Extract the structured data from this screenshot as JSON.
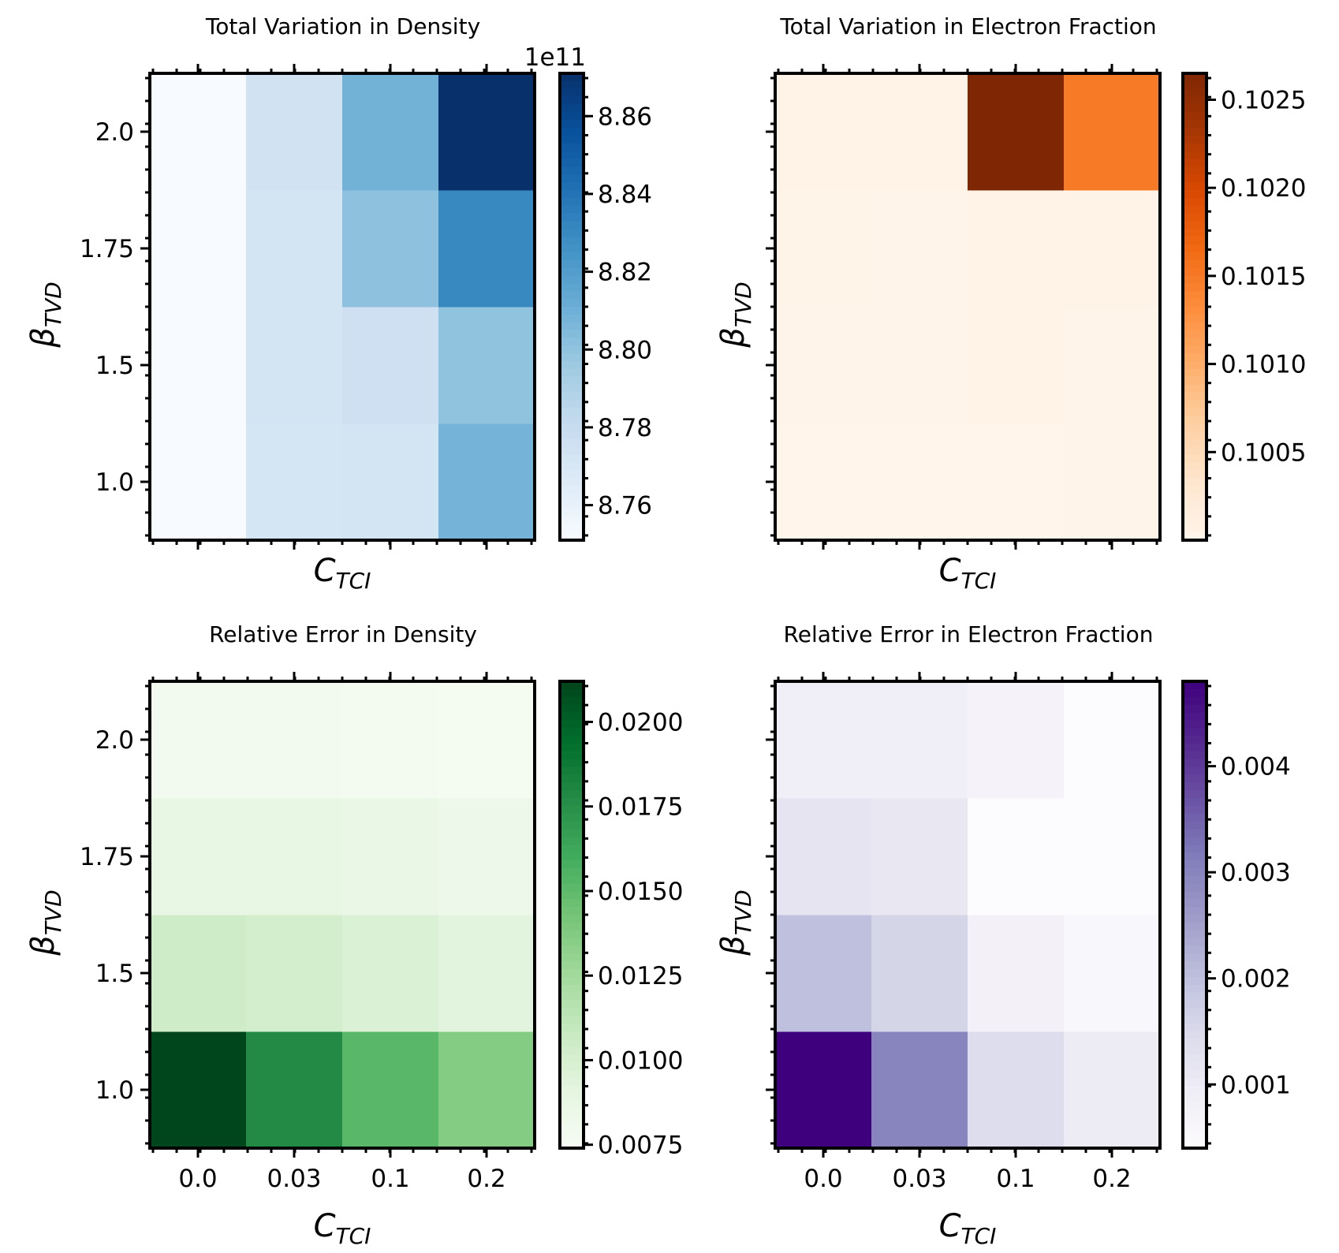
{
  "chart_data": [
    {
      "type": "heatmap",
      "title": "Total Variation in Density",
      "xlabel": "C_TCI",
      "ylabel": "β_TVD",
      "x": [
        "0.0",
        "0.03",
        "0.1",
        "0.2"
      ],
      "y": [
        "1.0",
        "1.5",
        "1.75",
        "2.0"
      ],
      "show_xticklabels": false,
      "show_yticklabels": true,
      "values": [
        [
          8.751,
          8.772,
          8.773,
          8.808
        ],
        [
          8.751,
          8.773,
          8.776,
          8.8
        ],
        [
          8.751,
          8.773,
          8.801,
          8.83
        ],
        [
          8.751,
          8.774,
          8.809,
          8.871
        ]
      ],
      "colormap": "Blues",
      "colorbar": {
        "min": 8.751,
        "max": 8.871,
        "ticks": [
          "8.76",
          "8.78",
          "8.80",
          "8.82",
          "8.84",
          "8.86"
        ],
        "offset_label": "1e11"
      }
    },
    {
      "type": "heatmap",
      "title": "Total Variation in Electron Fraction",
      "xlabel": "C_TCI",
      "ylabel": "β_TVD",
      "x": [
        "0.0",
        "0.03",
        "0.1",
        "0.2"
      ],
      "y": [
        "1.0",
        "1.5",
        "1.75",
        "2.0"
      ],
      "show_xticklabels": false,
      "show_yticklabels": false,
      "values": [
        [
          0.10001,
          0.10001,
          0.10001,
          0.10002
        ],
        [
          0.10002,
          0.10002,
          0.10005,
          0.10002
        ],
        [
          0.10003,
          0.10002,
          0.10004,
          0.10006
        ],
        [
          0.10004,
          0.10004,
          0.10265,
          0.1015
        ]
      ],
      "colormap": "Oranges",
      "colorbar": {
        "min": 0.1,
        "max": 0.10265,
        "ticks": [
          "0.1005",
          "0.1010",
          "0.1015",
          "0.1020",
          "0.1025"
        ]
      }
    },
    {
      "type": "heatmap",
      "title": "Relative Error in Density",
      "xlabel": "C_TCI",
      "ylabel": "β_TVD",
      "x": [
        "0.0",
        "0.03",
        "0.1",
        "0.2"
      ],
      "y": [
        "1.0",
        "1.5",
        "1.75",
        "2.0"
      ],
      "show_xticklabels": true,
      "show_yticklabels": true,
      "values": [
        [
          0.0211,
          0.0178,
          0.0152,
          0.0137
        ],
        [
          0.0104,
          0.0102,
          0.0097,
          0.0093
        ],
        [
          0.0088,
          0.0088,
          0.0086,
          0.0083
        ],
        [
          0.0079,
          0.0079,
          0.0078,
          0.0077
        ]
      ],
      "colormap": "Greens",
      "colorbar": {
        "min": 0.0074,
        "max": 0.0212,
        "ticks": [
          "0.0075",
          "0.0100",
          "0.0125",
          "0.0150",
          "0.0175",
          "0.0200"
        ]
      }
    },
    {
      "type": "heatmap",
      "title": "Relative Error in Electron Fraction",
      "xlabel": "C_TCI",
      "ylabel": "β_TVD",
      "x": [
        "0.0",
        "0.03",
        "0.1",
        "0.2"
      ],
      "y": [
        "1.0",
        "1.5",
        "1.75",
        "2.0"
      ],
      "show_xticklabels": true,
      "show_yticklabels": false,
      "values": [
        [
          0.0048,
          0.003,
          0.0014,
          0.001
        ],
        [
          0.002,
          0.0016,
          0.0008,
          0.00055
        ],
        [
          0.0012,
          0.0011,
          0.0004,
          0.0004
        ],
        [
          0.0009,
          0.0009,
          0.0007,
          0.0004
        ]
      ],
      "colormap": "Purples",
      "colorbar": {
        "min": 0.0004,
        "max": 0.0048,
        "ticks": [
          "0.001",
          "0.002",
          "0.003",
          "0.004"
        ]
      }
    }
  ]
}
